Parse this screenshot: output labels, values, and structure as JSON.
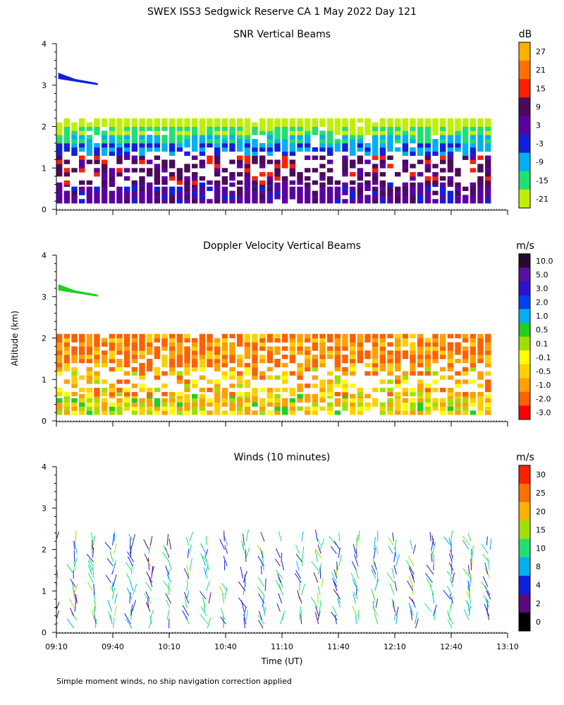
{
  "page": {
    "title": "SWEX ISS3 Sedgwick Reserve CA   1 May 2022 Day 121",
    "footnote": "Simple moment winds, no ship navigation correction applied"
  },
  "axes": {
    "ylabel": "Altitude (km)",
    "xlabel": "Time (UT)",
    "y_ticks": [
      "0",
      "1",
      "2",
      "3",
      "4"
    ],
    "x_ticks": [
      "09:10",
      "09:40",
      "10:10",
      "10:40",
      "11:10",
      "11:40",
      "12:10",
      "12:40",
      "13:10"
    ],
    "x_range_minutes": [
      0,
      240
    ],
    "y_range_km": [
      0,
      4
    ]
  },
  "chart_data": [
    {
      "type": "heatmap",
      "title": "SNR Vertical Beams",
      "colorbar_unit": "dB",
      "colorbar_labels": [
        "27",
        "21",
        "15",
        "9",
        "3",
        "-3",
        "-9",
        "-15",
        "-21"
      ],
      "colorbar_colors": [
        "#ffb000",
        "#ff7000",
        "#ff2000",
        "#4b0a5a",
        "#5a00a0",
        "#1020e0",
        "#00b0f0",
        "#20e070",
        "#c0f000"
      ],
      "ylim": [
        0,
        4
      ],
      "layers": [
        {
          "bottom_km": 0.15,
          "top_km": 0.6,
          "snr_db": 6
        },
        {
          "bottom_km": 0.6,
          "top_km": 1.3,
          "snr_db": 12
        },
        {
          "bottom_km": 1.3,
          "top_km": 1.6,
          "snr_db": -3
        },
        {
          "bottom_km": 1.6,
          "top_km": 1.8,
          "snr_db": -9
        },
        {
          "bottom_km": 1.8,
          "top_km": 2.0,
          "snr_db": -15
        },
        {
          "bottom_km": 2.0,
          "top_km": 2.2,
          "snr_db": -21
        }
      ]
    },
    {
      "type": "heatmap",
      "title": "Doppler Velocity Vertical Beams",
      "colorbar_unit": "m/s",
      "colorbar_labels": [
        "10.0",
        "5.0",
        "3.0",
        "2.0",
        "1.0",
        "0.5",
        "0.1",
        "-0.1",
        "-0.5",
        "-1.0",
        "-2.0",
        "-3.0"
      ],
      "colorbar_colors": [
        "#2a0a2a",
        "#5a10a0",
        "#3010d0",
        "#0040f0",
        "#00b0f0",
        "#20d020",
        "#a0e000",
        "#ffff00",
        "#ffd000",
        "#ffa000",
        "#ff6000",
        "#ff0000"
      ],
      "ylim": [
        0,
        4
      ],
      "layers": [
        {
          "bottom_km": 0.15,
          "top_km": 0.6,
          "velocity_ms": -0.1
        },
        {
          "bottom_km": 0.6,
          "top_km": 1.3,
          "velocity_ms": -0.5
        },
        {
          "bottom_km": 1.3,
          "top_km": 2.1,
          "velocity_ms": -1.0
        }
      ]
    },
    {
      "type": "scatter",
      "title": "Winds (10 minutes)",
      "colorbar_unit": "m/s",
      "colorbar_labels": [
        "30",
        "25",
        "20",
        "15",
        "10",
        "8",
        "4",
        "2",
        "0"
      ],
      "colorbar_colors": [
        "#ff2000",
        "#ff7000",
        "#ffb000",
        "#a0e000",
        "#20e070",
        "#00b0f0",
        "#1020e0",
        "#5a0a7a",
        "#000000"
      ],
      "ylim": [
        0,
        4
      ],
      "profiles_every_minutes": 10,
      "altitude_range_km": [
        0.1,
        2.3
      ]
    }
  ]
}
